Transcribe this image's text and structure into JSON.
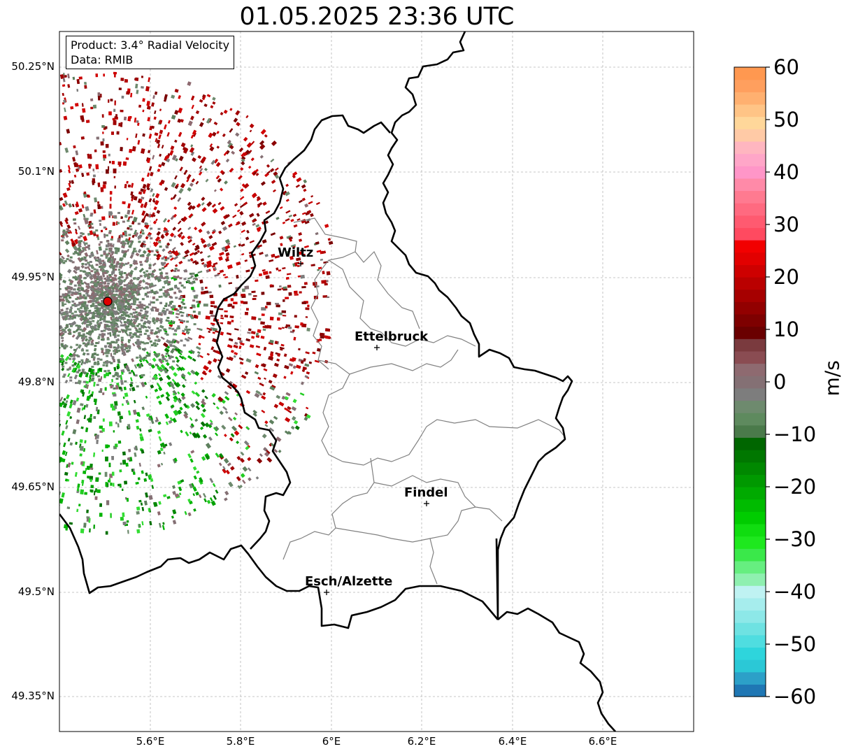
{
  "title": "01.05.2025 23:36 UTC",
  "info": {
    "product": "Product: 3.4° Radial Velocity",
    "data": "Data: RMIB"
  },
  "map": {
    "lat_labels": [
      "50.25°N",
      "50.1°N",
      "49.95°N",
      "49.8°N",
      "49.65°N",
      "49.5°N",
      "49.35°N"
    ],
    "lon_labels": [
      "5.6°E",
      "5.8°E",
      "6°E",
      "6.2°E",
      "6.4°E",
      "6.6°E"
    ],
    "towns": [
      {
        "name": "Wiltz"
      },
      {
        "name": "Ettelbruck"
      },
      {
        "name": "Findel"
      },
      {
        "name": "Esch/Alzette"
      }
    ],
    "radar_site_color": "#e00000"
  },
  "colorbar": {
    "unit": "m/s",
    "ticks": [
      "60",
      "50",
      "40",
      "30",
      "20",
      "10",
      "0",
      "−10",
      "−20",
      "−30",
      "−40",
      "−50",
      "−60"
    ],
    "range": [
      -60,
      60
    ]
  }
}
